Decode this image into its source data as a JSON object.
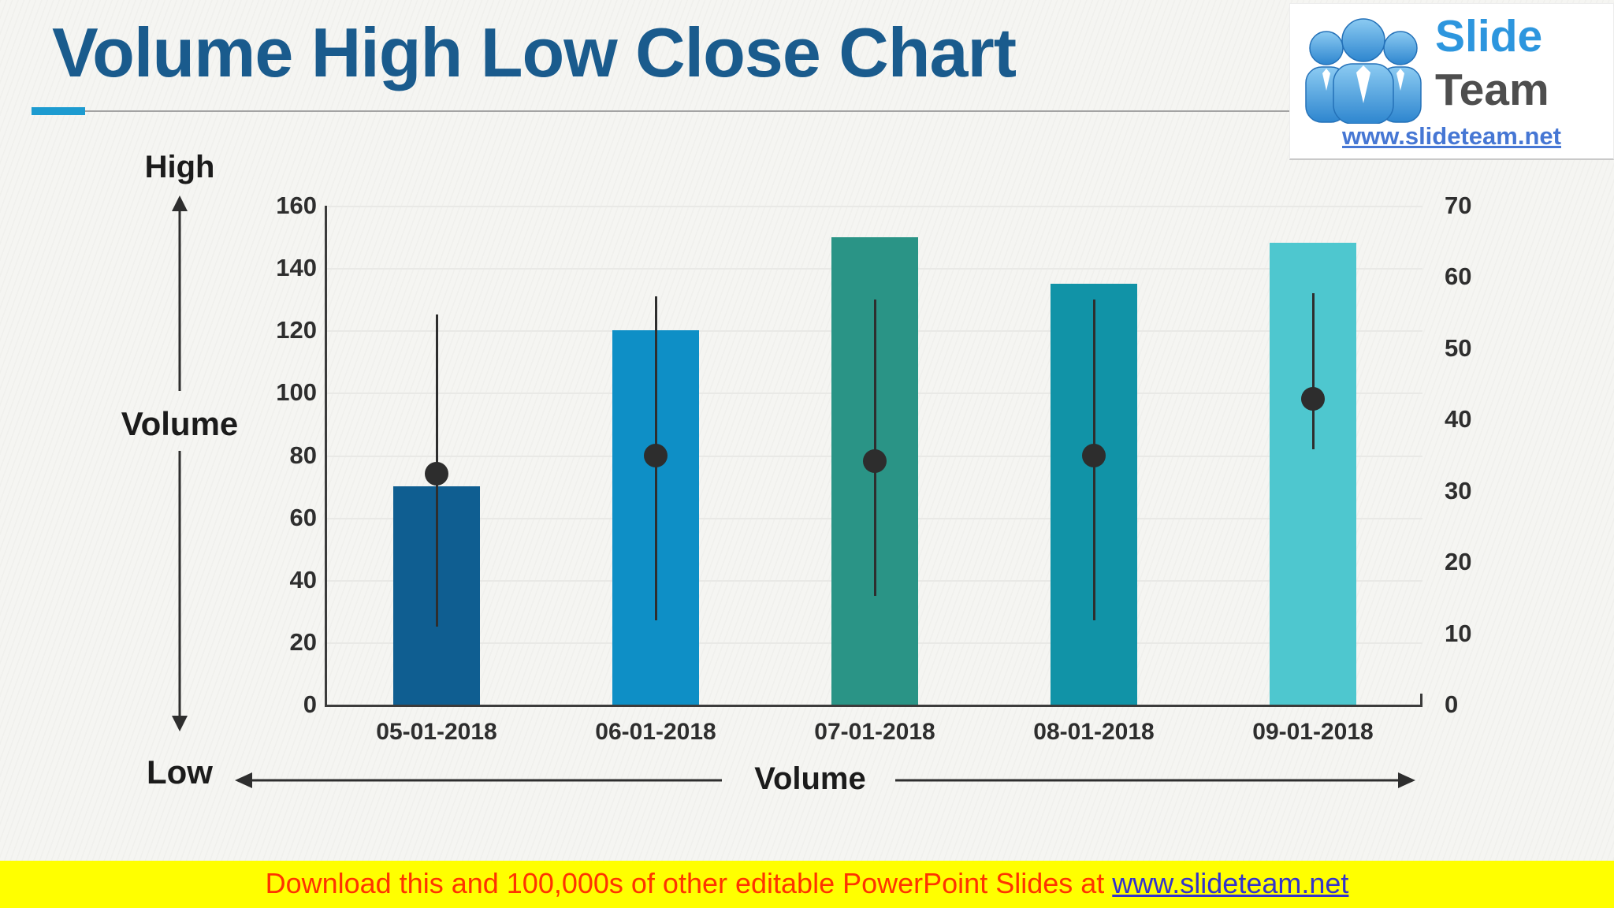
{
  "title": "Volume High Low Close Chart",
  "logo": {
    "brand_top": "Slide",
    "brand_bottom": "Team",
    "url": "www.slideteam.net"
  },
  "left_rail": {
    "high": "High",
    "volume": "Volume",
    "low": "Low"
  },
  "bottom_rail": {
    "volume": "Volume"
  },
  "banner": {
    "prefix": "Download this and 100,000s of other editable PowerPoint Slides at ",
    "link": "www.slideteam.net"
  },
  "colors": {
    "title": "#1A5B8D",
    "accent": "#1D9BD0",
    "logo_brand_top": "#2D96DE",
    "logo_brand_bottom": "#4E4E4E",
    "logo_url": "#4677D4",
    "banner_bg": "#FFFF00",
    "banner_text": "#FF3300",
    "banner_link": "#3333CC",
    "axis": "#3B3B3B",
    "marker": "#2D2D2D"
  },
  "chart_data": {
    "type": "bar",
    "subtype": "volume-high-low-close combo (bars + high-low whisker + close dot)",
    "title": "Volume High Low Close Chart",
    "categories": [
      "05-01-2018",
      "06-01-2018",
      "07-01-2018",
      "08-01-2018",
      "09-01-2018"
    ],
    "series": [
      {
        "name": "Volume",
        "type": "bar",
        "axis": "left",
        "values": [
          70,
          120,
          150,
          135,
          148
        ],
        "colors": [
          "#0F5E91",
          "#0E8FC6",
          "#2A9486",
          "#1193A7",
          "#4EC7CF"
        ]
      },
      {
        "name": "High",
        "type": "whisker-top",
        "axis": "left",
        "values": [
          125,
          131,
          130,
          130,
          132
        ]
      },
      {
        "name": "Low",
        "type": "whisker-bottom",
        "axis": "left",
        "values": [
          25,
          27,
          35,
          27,
          82
        ]
      },
      {
        "name": "Close",
        "type": "dot",
        "axis": "left",
        "values": [
          74,
          80,
          78,
          80,
          98
        ]
      }
    ],
    "left_axis": {
      "min": 0,
      "max": 160,
      "step": 20,
      "ticks": [
        160,
        140,
        120,
        100,
        80,
        60,
        40,
        20,
        0
      ]
    },
    "right_axis": {
      "min": 0,
      "max": 70,
      "step": 10,
      "ticks": [
        70,
        60,
        50,
        40,
        30,
        20,
        10,
        0
      ]
    },
    "x_axis_label": "Volume",
    "y_axis_annotations": [
      "High",
      "Volume",
      "Low"
    ],
    "grid": true,
    "legend_position": "none"
  }
}
